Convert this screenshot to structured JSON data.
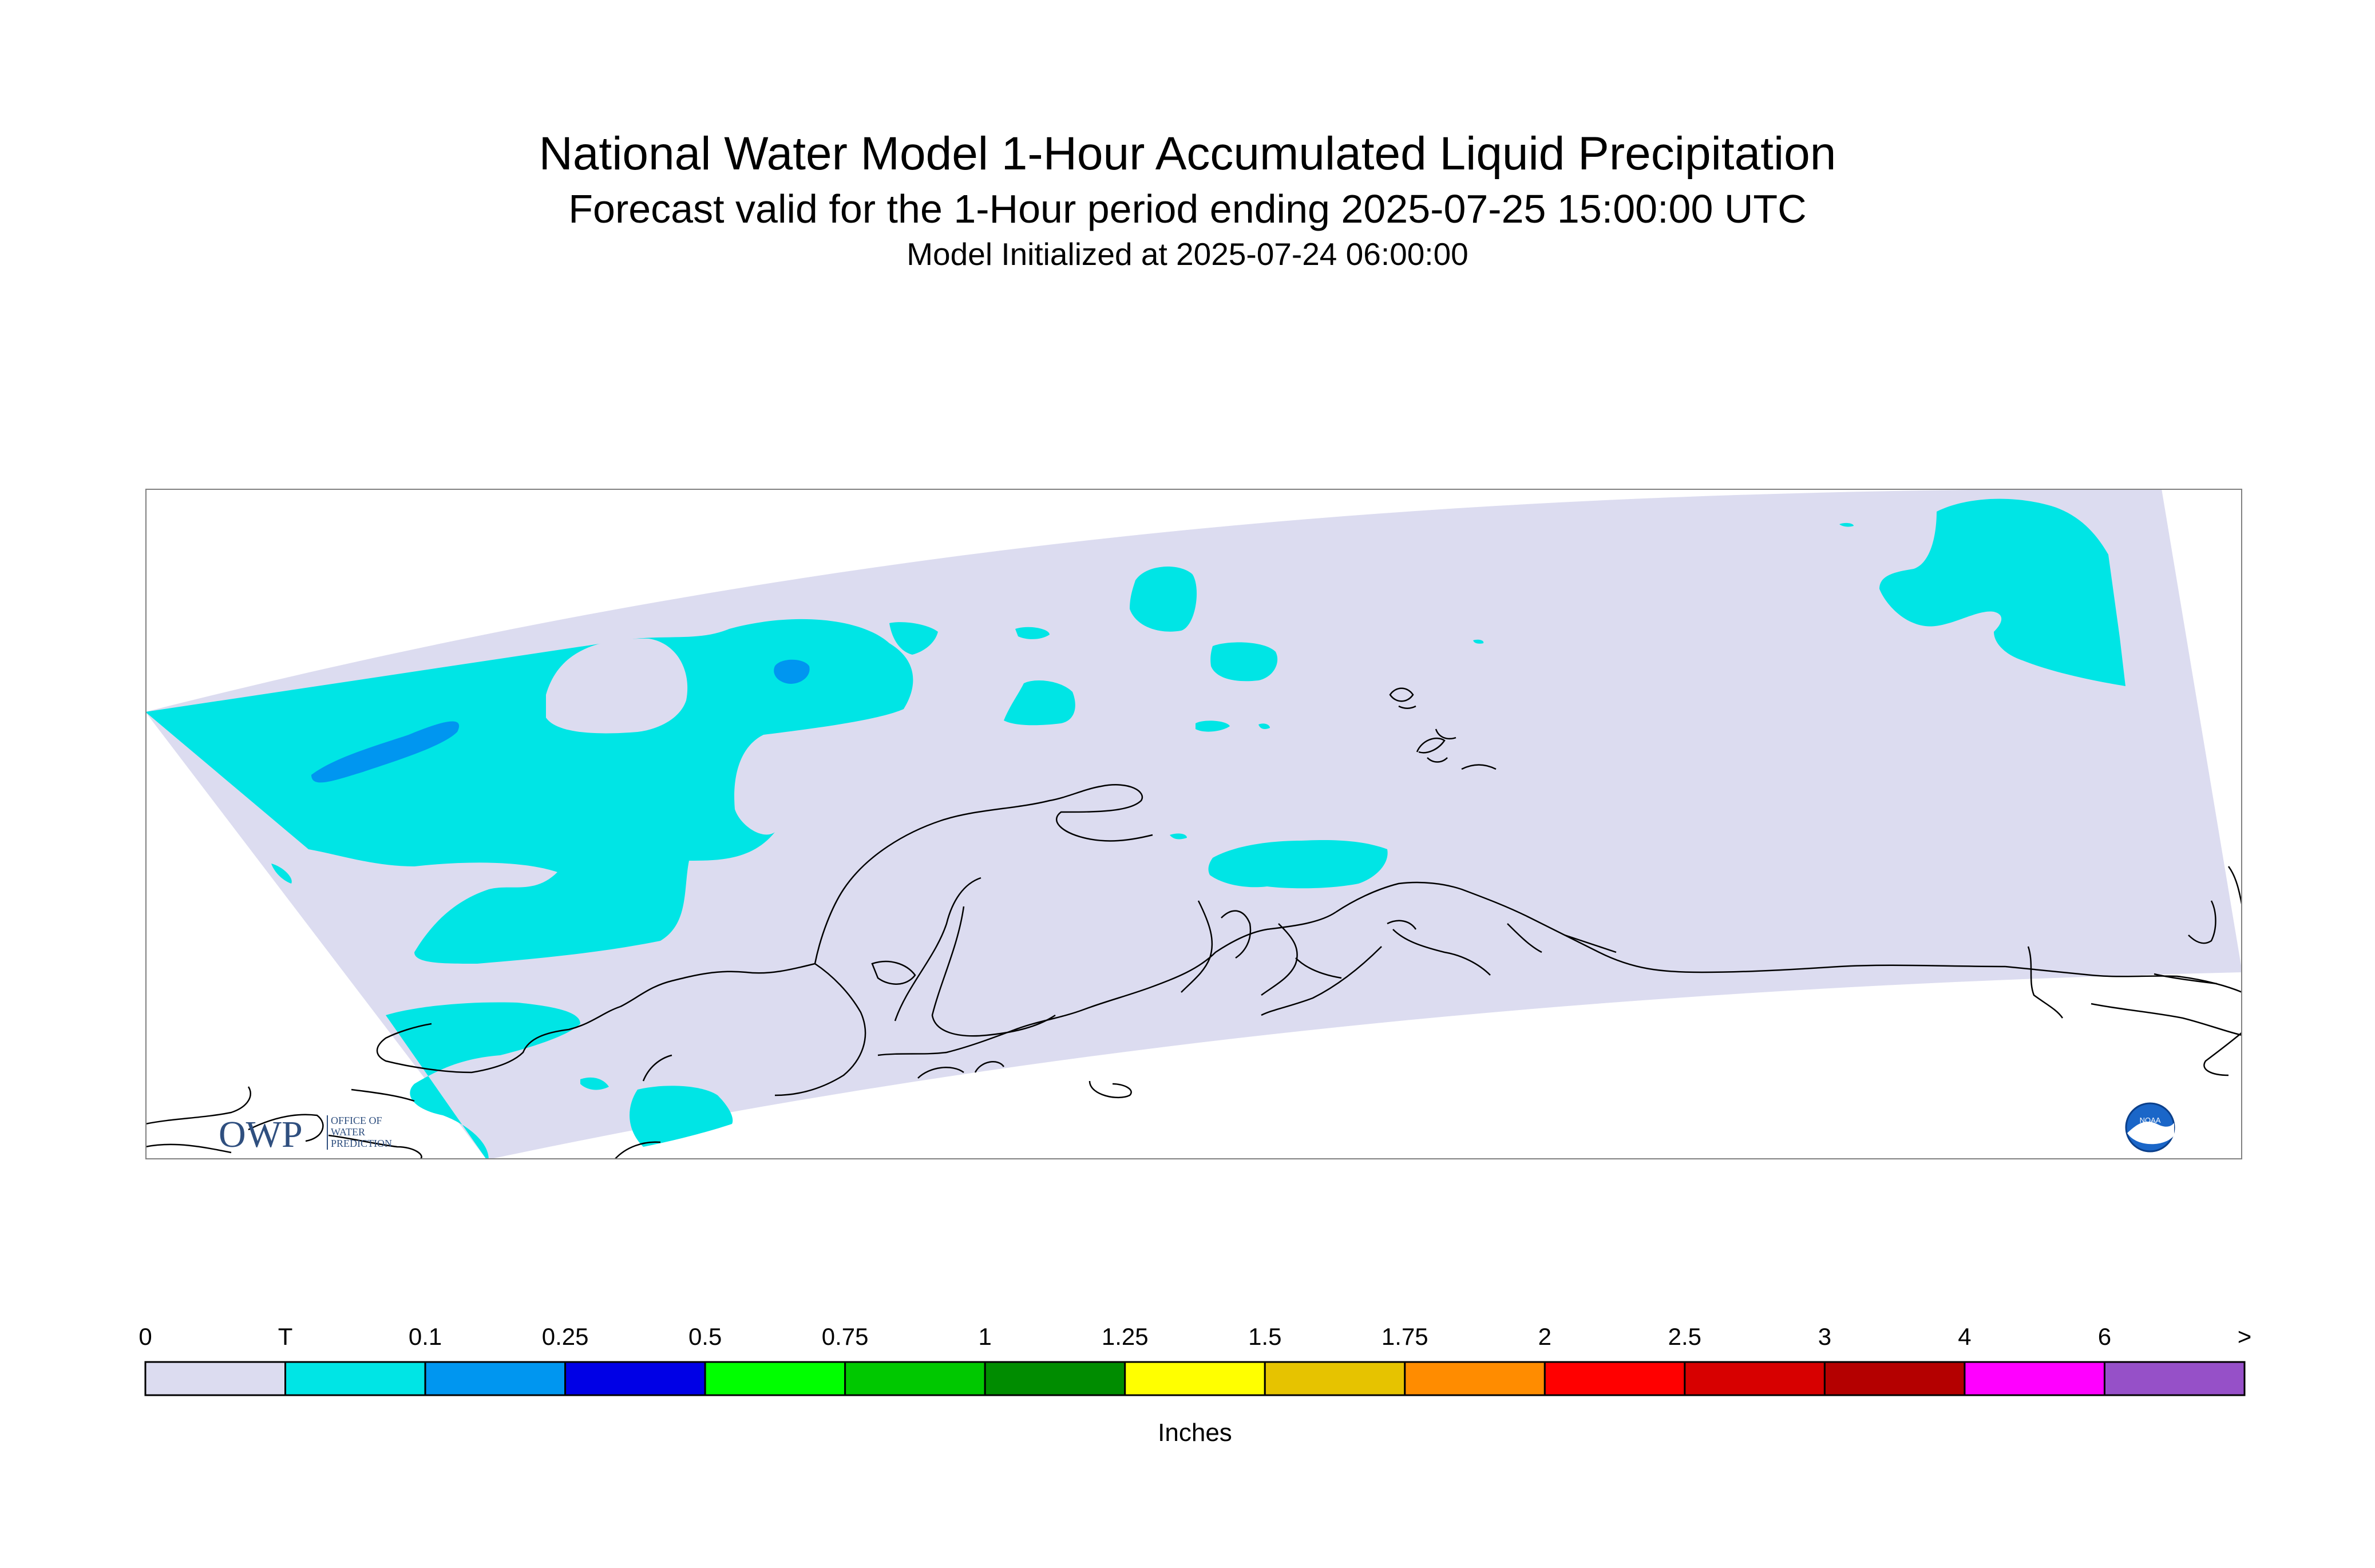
{
  "title": "National Water Model 1-Hour Accumulated Liquid Precipitation",
  "subtitle": "Forecast valid for the 1-Hour period ending 2025-07-25 15:00:00 UTC",
  "init": "Model Initialized at 2025-07-24 06:00:00",
  "logos": {
    "owp_mark": "OWP",
    "owp_sub": [
      "OFFICE OF",
      "WATER",
      "PREDICTION"
    ],
    "noaa_mark": "NOAA"
  },
  "legend": {
    "unit": "Inches",
    "labels": [
      "0",
      "T",
      "0.1",
      "0.25",
      "0.5",
      "0.75",
      "1",
      "1.25",
      "1.5",
      "1.75",
      "2",
      "2.5",
      "3",
      "4",
      "6",
      ">"
    ],
    "colors": [
      "#dcdcf0",
      "#00e5e5",
      "#0096f0",
      "#0000e6",
      "#00ff00",
      "#00c800",
      "#008c00",
      "#ffff00",
      "#e6c300",
      "#ff8c00",
      "#ff0000",
      "#d70000",
      "#b40000",
      "#ff00ff",
      "#9650c8"
    ]
  },
  "map_colors": {
    "background": "#ffffff",
    "domain_fill": "#dcdcf0",
    "trace": "#00e5e5",
    "light": "#0096f0",
    "coast": "#000000",
    "frame": "#808080"
  }
}
